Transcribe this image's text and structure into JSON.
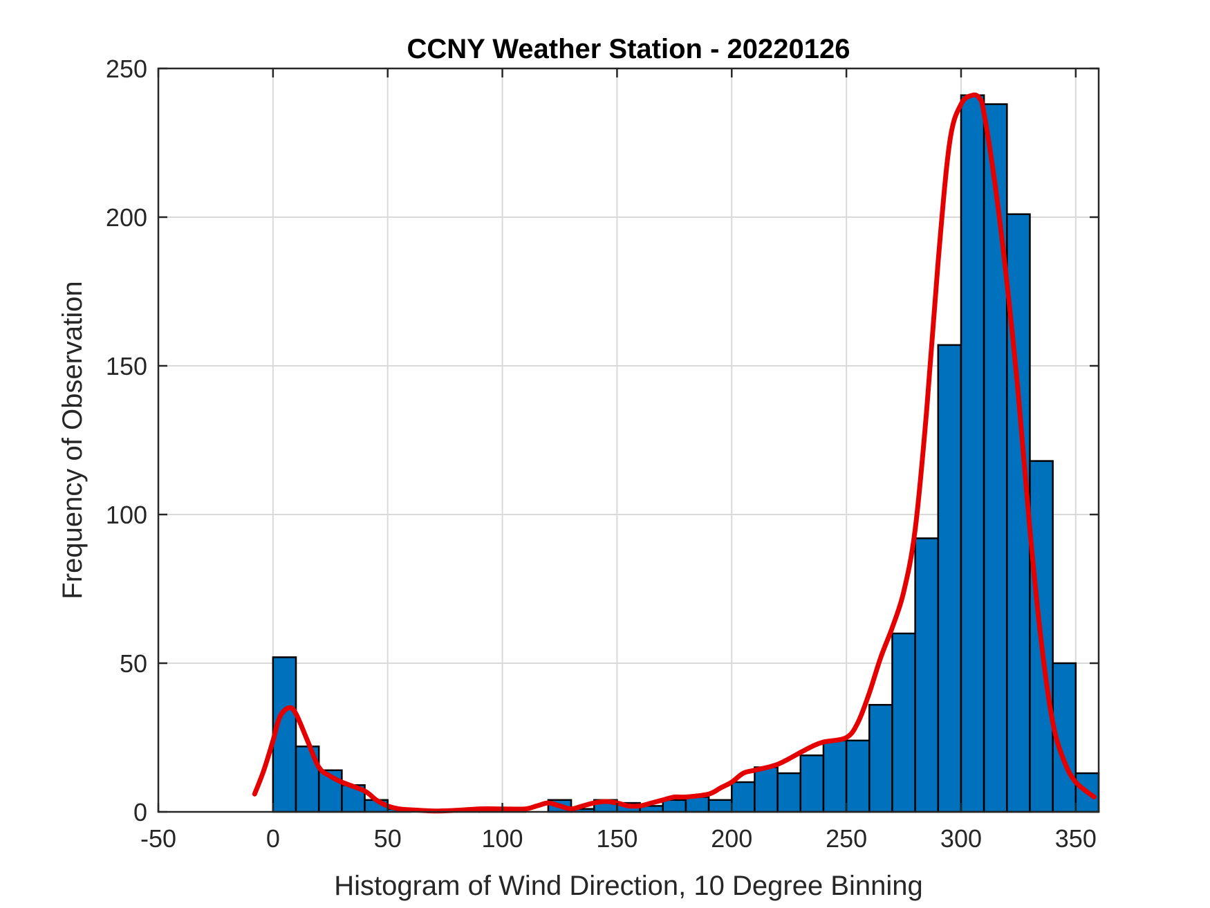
{
  "colors": {
    "bar_fill": "#0072BD",
    "bar_edge": "#000000",
    "curve": "#E50000",
    "grid": "#D9D9D9",
    "axis": "#262626"
  },
  "chart_data": {
    "type": "bar",
    "title": "CCNY Weather Station - 20220126",
    "xlabel": "Histogram of Wind Direction, 10 Degree Binning",
    "ylabel": "Frequency of Observation",
    "xlim": [
      -50,
      360
    ],
    "ylim": [
      0,
      250
    ],
    "grid": true,
    "xticks": [
      -50,
      0,
      50,
      100,
      150,
      200,
      250,
      300,
      350
    ],
    "yticks": [
      0,
      50,
      100,
      150,
      200,
      250
    ],
    "bin_width": 10,
    "bin_edges_start": [
      0,
      10,
      20,
      30,
      40,
      50,
      60,
      70,
      80,
      90,
      100,
      110,
      120,
      130,
      140,
      150,
      160,
      170,
      180,
      190,
      200,
      210,
      220,
      230,
      240,
      250,
      260,
      270,
      280,
      290,
      300,
      310,
      320,
      330,
      340,
      350
    ],
    "values": [
      52,
      22,
      14,
      9,
      4,
      1,
      0,
      0,
      1,
      1,
      1,
      0,
      4,
      1,
      4,
      3,
      2,
      4,
      5,
      4,
      10,
      15,
      13,
      19,
      24,
      24,
      36,
      60,
      92,
      157,
      241,
      238,
      201,
      118,
      50,
      13
    ],
    "series": [
      {
        "name": "smoothed density",
        "type": "line",
        "x": [
          -8,
          -4,
          0,
          3,
          7,
          10,
          15,
          20,
          25,
          30,
          40,
          45,
          50,
          55,
          60,
          70,
          80,
          90,
          100,
          110,
          115,
          120,
          125,
          130,
          135,
          140,
          145,
          150,
          155,
          160,
          165,
          170,
          175,
          180,
          190,
          195,
          200,
          205,
          210,
          220,
          230,
          235,
          240,
          250,
          255,
          260,
          265,
          270,
          275,
          280,
          285,
          290,
          295,
          300,
          305,
          308,
          310,
          315,
          320,
          325,
          330,
          335,
          340,
          345,
          350,
          358
        ],
        "y": [
          6,
          14,
          24,
          32,
          35,
          33,
          24,
          15,
          12,
          10,
          7,
          4,
          2,
          1,
          0.7,
          0.3,
          0.5,
          1,
          1,
          1,
          2,
          3,
          2,
          1,
          2,
          3,
          3.5,
          3,
          2,
          2,
          3,
          4,
          5,
          5,
          6,
          8,
          10,
          13,
          14,
          16,
          20,
          22,
          23.5,
          25,
          30,
          40,
          52,
          62,
          74,
          95,
          135,
          185,
          225,
          238,
          241,
          240,
          235,
          210,
          178,
          140,
          95,
          57,
          30,
          17,
          10,
          5
        ]
      }
    ]
  }
}
